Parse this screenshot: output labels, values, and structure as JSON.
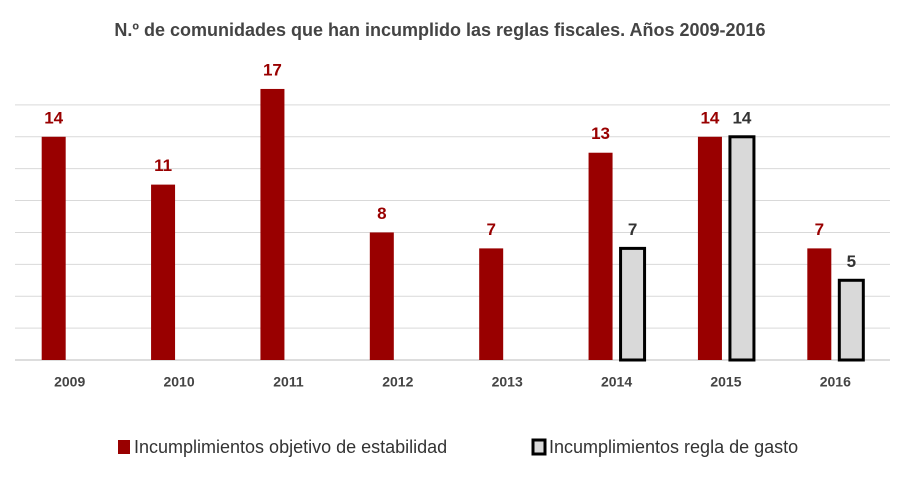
{
  "chart_data": {
    "type": "bar",
    "title": "N.º de comunidades que han incumplido las reglas fiscales. Años 2009-2016",
    "categories": [
      "2009",
      "2010",
      "2011",
      "2012",
      "2013",
      "2014",
      "2015",
      "2016"
    ],
    "series": [
      {
        "name": "Incumplimientos objetivo de estabilidad",
        "color": "#990000",
        "values": [
          14,
          11,
          17,
          8,
          7,
          13,
          14,
          7
        ]
      },
      {
        "name": "Incumplimientos regla de gasto",
        "color": "#d9d9d9",
        "values": [
          null,
          null,
          null,
          null,
          null,
          7,
          14,
          5
        ]
      }
    ],
    "ylim": [
      0,
      18
    ],
    "yticks": [
      0,
      2,
      4,
      6,
      8,
      10,
      12,
      14,
      16
    ],
    "grid": true,
    "legend": "bottom"
  }
}
